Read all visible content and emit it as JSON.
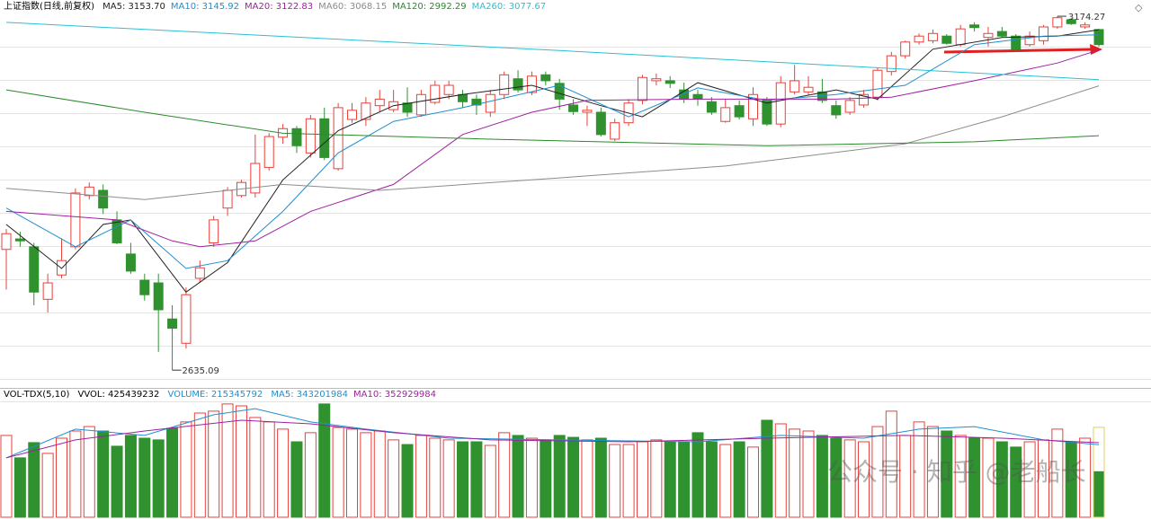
{
  "chart_data": {
    "type": "candlestick",
    "title": "上证指数(日线,前复权)",
    "open": [
      2819,
      2835,
      2823,
      2743,
      2780,
      2823,
      2901,
      2909,
      2864,
      2812,
      2772,
      2768,
      2713,
      2676,
      2775,
      2829,
      2882,
      2901,
      2905,
      2944,
      2990,
      3003,
      2966,
      3018,
      2942,
      3017,
      3017,
      3038,
      3032,
      3042,
      3024,
      3043,
      3055,
      3055,
      3048,
      3028,
      3055,
      3079,
      3058,
      3085,
      3072,
      3039,
      3028,
      3028,
      2987,
      3012,
      3046,
      3076,
      3076,
      3062,
      3055,
      3044,
      3014,
      3038,
      3018,
      3046,
      3010,
      3059,
      3059,
      3059,
      3038,
      3028,
      3039,
      3051,
      3090,
      3114,
      3135,
      3137,
      3144,
      3131,
      3161,
      3142,
      3151,
      3144,
      3131,
      3137,
      3158,
      3169,
      3158,
      3154
    ],
    "high": [
      2850,
      2846,
      2829,
      2782,
      2836,
      2912,
      2921,
      2918,
      2877,
      2829,
      2782,
      2782,
      2734,
      2761,
      2802,
      2870,
      2914,
      2925,
      2994,
      2996,
      3010,
      3007,
      3024,
      3035,
      3042,
      3042,
      3051,
      3062,
      3062,
      3066,
      3062,
      3076,
      3076,
      3062,
      3055,
      3062,
      3090,
      3092,
      3090,
      3090,
      3079,
      3048,
      3038,
      3035,
      3018,
      3048,
      3085,
      3087,
      3083,
      3073,
      3062,
      3051,
      3048,
      3046,
      3066,
      3051,
      3083,
      3100,
      3083,
      3079,
      3046,
      3051,
      3062,
      3096,
      3120,
      3137,
      3148,
      3154,
      3147,
      3161,
      3165,
      3158,
      3158,
      3147,
      3151,
      3161,
      3174.27,
      3172,
      3165,
      3155
    ],
    "low": [
      2758,
      2823,
      2734,
      2723,
      2775,
      2819,
      2895,
      2873,
      2827,
      2782,
      2741,
      2663,
      2635.09,
      2668,
      2768,
      2823,
      2870,
      2898,
      2898,
      2939,
      2980,
      2966,
      2959,
      2955,
      2939,
      3012,
      3007,
      3028,
      3028,
      3021,
      3021,
      3040,
      3048,
      3035,
      3024,
      3021,
      3048,
      3058,
      3054,
      3069,
      3032,
      3024,
      3007,
      2991,
      2984,
      3007,
      3040,
      3069,
      3065,
      3042,
      3038,
      3024,
      3012,
      3017,
      3007,
      3007,
      3005,
      3055,
      3054,
      3042,
      3018,
      3024,
      3035,
      3046,
      3084,
      3110,
      3131,
      3133,
      3131,
      3128,
      3151,
      3128,
      3142,
      3120,
      3128,
      3131,
      3155,
      3161,
      3155,
      3128
    ],
    "close": [
      2843,
      2832,
      2754,
      2768,
      2802,
      2905,
      2914,
      2882,
      2829,
      2786,
      2750,
      2727,
      2699,
      2750,
      2791,
      2864,
      2909,
      2921,
      2950,
      2991,
      3003,
      2977,
      3018,
      2959,
      3035,
      3031,
      3042,
      3048,
      3044,
      3028,
      3055,
      3069,
      3069,
      3044,
      3039,
      3055,
      3085,
      3062,
      3083,
      3076,
      3048,
      3029,
      3031,
      2994,
      3012,
      3042,
      3081,
      3079,
      3072,
      3048,
      3048,
      3028,
      3035,
      3021,
      3055,
      3010,
      3073,
      3076,
      3066,
      3046,
      3024,
      3046,
      3055,
      3092,
      3114,
      3135,
      3144,
      3148,
      3133,
      3155,
      3157,
      3148,
      3144,
      3124,
      3144,
      3158,
      3172,
      3163,
      3161,
      3131
    ],
    "ylim": [
      2608,
      3199
    ],
    "up_color": "#e8413b",
    "down_color": "#2f922f",
    "ma_lines": [
      {
        "name": "MA5",
        "legend": "MA5: 3153.70",
        "color": "#222222",
        "x": [
          0,
          4,
          7,
          9,
          13,
          16,
          20,
          24,
          28,
          33,
          38,
          43,
          46,
          50,
          55,
          60,
          63,
          67,
          72,
          76,
          79
        ],
        "values": [
          2857,
          2790,
          2857,
          2864,
          2754,
          2799,
          2925,
          3000,
          3038,
          3055,
          3069,
          3038,
          3021,
          3073,
          3042,
          3062,
          3048,
          3124,
          3142,
          3144,
          3153.7
        ]
      },
      {
        "name": "MA10",
        "legend": "MA10: 3145.92",
        "color": "#1f8fd0",
        "x": [
          0,
          5,
          9,
          13,
          16,
          20,
          24,
          28,
          33,
          40,
          45,
          50,
          55,
          60,
          65,
          70,
          75,
          79
        ],
        "values": [
          2882,
          2823,
          2864,
          2790,
          2802,
          2877,
          2966,
          3014,
          3035,
          3069,
          3021,
          3065,
          3046,
          3055,
          3069,
          3131,
          3144,
          3145.92
        ]
      },
      {
        "name": "MA20",
        "legend": "MA20: 3122.83",
        "color": "#a020a0",
        "x": [
          0,
          8,
          12,
          14,
          18,
          22,
          28,
          33,
          38,
          42,
          50,
          60,
          64,
          70,
          76,
          79
        ],
        "values": [
          2877,
          2864,
          2832,
          2823,
          2832,
          2877,
          2918,
          2994,
          3028,
          3046,
          3048,
          3048,
          3051,
          3076,
          3103,
          3122.83
        ]
      },
      {
        "name": "MA60",
        "legend": "MA60: 3068.15",
        "color": "#8c8c8c",
        "x": [
          0,
          10,
          20,
          27,
          40,
          52,
          65,
          72,
          79
        ],
        "values": [
          2912,
          2895,
          2918,
          2909,
          2928,
          2946,
          2980,
          3021,
          3068.15
        ]
      },
      {
        "name": "MA120",
        "legend": "MA120: 2992.29",
        "color": "#2a8a2a",
        "x": [
          0,
          10,
          20,
          35,
          55,
          70,
          79
        ],
        "values": [
          3062,
          3028,
          2996,
          2987,
          2977,
          2983,
          2992.29
        ]
      },
      {
        "name": "MA260",
        "legend": "MA260: 3077.67",
        "color": "#2bbfd6",
        "x": [
          0,
          40,
          79
        ],
        "values": [
          3165,
          3122,
          3077.67
        ]
      }
    ],
    "volume": {
      "title": "VOL-TDX(5,10)",
      "vvol_legend": "VVOL: 425439232",
      "volume_legend": "VOLUME: 215345792",
      "vvol": 425439232,
      "vvol_color": "#e0d060",
      "ylim": [
        0,
        544000000
      ],
      "values": [
        387000000,
        281000000,
        353000000,
        302000000,
        374000000,
        408000000,
        429000000,
        408000000,
        336000000,
        387000000,
        374000000,
        366000000,
        421000000,
        451000000,
        493000000,
        502000000,
        536000000,
        527000000,
        472000000,
        451000000,
        417000000,
        357000000,
        400000000,
        536000000,
        425000000,
        417000000,
        400000000,
        408000000,
        366000000,
        344000000,
        387000000,
        374000000,
        366000000,
        357000000,
        357000000,
        340000000,
        400000000,
        387000000,
        374000000,
        366000000,
        387000000,
        378000000,
        366000000,
        374000000,
        344000000,
        344000000,
        357000000,
        366000000,
        357000000,
        357000000,
        400000000,
        357000000,
        344000000,
        357000000,
        332000000,
        459000000,
        442000000,
        417000000,
        408000000,
        387000000,
        374000000,
        366000000,
        357000000,
        429000000,
        502000000,
        387000000,
        451000000,
        429000000,
        408000000,
        387000000,
        374000000,
        374000000,
        357000000,
        332000000,
        357000000,
        366000000,
        417000000,
        357000000,
        374000000,
        215345792
      ],
      "ma_lines": [
        {
          "name": "MA5",
          "legend": "MA5: 343201984",
          "color": "#1f8fd0",
          "x": [
            0,
            5,
            10,
            15,
            18,
            22,
            26,
            32,
            40,
            50,
            56,
            62,
            66,
            70,
            75,
            79
          ],
          "values": [
            281000000,
            417000000,
            387000000,
            485000000,
            514000000,
            451000000,
            417000000,
            374000000,
            366000000,
            357000000,
            387000000,
            374000000,
            417000000,
            429000000,
            366000000,
            343201984
          ]
        },
        {
          "name": "MA10",
          "legend": "MA10: 352929984",
          "color": "#a020a0",
          "x": [
            0,
            5,
            10,
            17,
            22,
            28,
            35,
            45,
            55,
            65,
            72,
            79
          ],
          "values": [
            281000000,
            366000000,
            408000000,
            459000000,
            442000000,
            400000000,
            366000000,
            357000000,
            374000000,
            387000000,
            374000000,
            352929984
          ]
        }
      ]
    },
    "watermark": "公众号 · 知乎 @老船长"
  }
}
